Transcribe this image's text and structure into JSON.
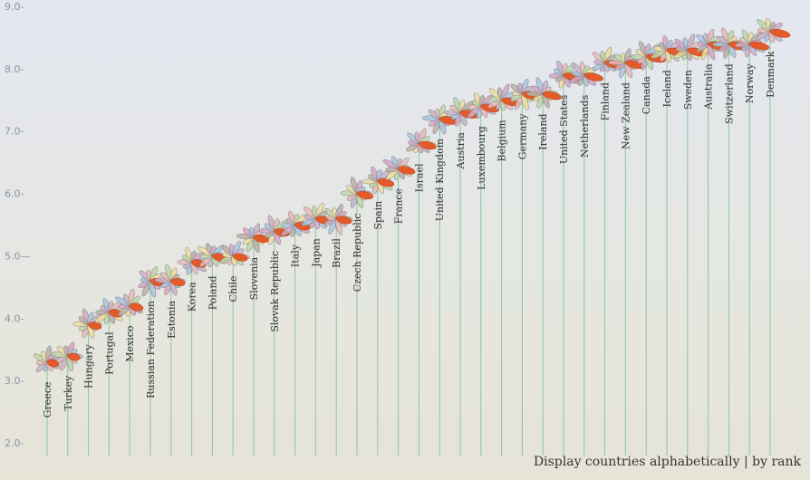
{
  "chart_data": {
    "type": "flower",
    "yticks": [
      "9.0-",
      "8.0-",
      "7.0-",
      "6.0-",
      "5.0—",
      "4.0-",
      "3.0-",
      "2.0-"
    ],
    "ytick_values": [
      9,
      8,
      7,
      6,
      5,
      4,
      3,
      2
    ],
    "ylim": [
      2,
      9
    ],
    "categories": [
      "Greece",
      "Turkey",
      "Hungary",
      "Portugal",
      "Mexico",
      "Russian Federation",
      "Estonia",
      "Korea",
      "Poland",
      "Chile",
      "Slovenia",
      "Slovak Republic",
      "Italy",
      "Japan",
      "Brazil",
      "Czech Republic",
      "Spain",
      "France",
      "Israel",
      "United Kingdom",
      "Austria",
      "Luxembourg",
      "Belgium",
      "Germany",
      "Ireland",
      "United States",
      "Netherlands",
      "Finland",
      "New Zealand",
      "Canada",
      "Iceland",
      "Sweden",
      "Australia",
      "Switzerland",
      "Norway",
      "Denmark"
    ],
    "values": [
      3.3,
      3.4,
      3.9,
      4.1,
      4.2,
      4.6,
      4.6,
      4.9,
      5.0,
      5.0,
      5.3,
      5.4,
      5.5,
      5.6,
      5.6,
      6.0,
      6.2,
      6.4,
      6.8,
      7.2,
      7.3,
      7.4,
      7.5,
      7.6,
      7.6,
      7.9,
      7.9,
      8.1,
      8.1,
      8.2,
      8.3,
      8.3,
      8.4,
      8.4,
      8.4,
      8.6
    ],
    "petal_colors": [
      "#a8c4de",
      "#c8b2c8",
      "#e8b8b8",
      "#bcd6a8",
      "#eedda0",
      "#b8b0a8",
      "#d4a6c4"
    ],
    "highlight_color": "#e45a2a"
  },
  "footer": {
    "alpha_label": "Display countries alphabetically",
    "sep": "|",
    "rank_label": "by rank"
  }
}
